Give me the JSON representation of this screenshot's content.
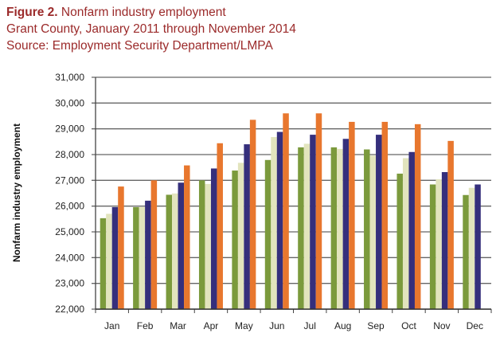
{
  "header": {
    "figure_label": "Figure 2.",
    "title": "Nonfarm industry employment",
    "subtitle": "Grant County, January 2011 through November 2014",
    "source": "Source: Employment Security Department/LMPA"
  },
  "chart_data": {
    "type": "bar",
    "title": "Nonfarm industry employment",
    "xlabel": "",
    "ylabel": "Nonfarm industry employment",
    "ylim": [
      22000,
      31000
    ],
    "yticks": [
      22000,
      23000,
      24000,
      25000,
      26000,
      27000,
      28000,
      29000,
      30000,
      31000
    ],
    "ytick_labels": [
      "22,000",
      "23,000",
      "24,000",
      "25,000",
      "26,000",
      "27,000",
      "28,000",
      "29,000",
      "30,000",
      "31,000"
    ],
    "grid": true,
    "categories": [
      "Jan",
      "Feb",
      "Mar",
      "Apr",
      "May",
      "Jun",
      "Jul",
      "Aug",
      "Sep",
      "Oct",
      "Nov",
      "Dec"
    ],
    "series": [
      {
        "color": "#7b9a3c",
        "values": [
          25530,
          25960,
          26440,
          27000,
          27380,
          27790,
          28280,
          28280,
          28200,
          27260,
          26840,
          26430
        ]
      },
      {
        "color": "#e2e4bd",
        "values": [
          25700,
          25960,
          26490,
          26860,
          27680,
          28680,
          28420,
          28220,
          27960,
          27860,
          27040,
          26710
        ]
      },
      {
        "color": "#352f7c",
        "values": [
          25960,
          26210,
          26910,
          27460,
          28400,
          28880,
          28770,
          28610,
          28770,
          28100,
          27320,
          26840
        ]
      },
      {
        "color": "#e8772e",
        "values": [
          26760,
          27000,
          27580,
          28440,
          29350,
          29600,
          29600,
          29270,
          29270,
          29180,
          28530,
          null
        ]
      }
    ]
  }
}
